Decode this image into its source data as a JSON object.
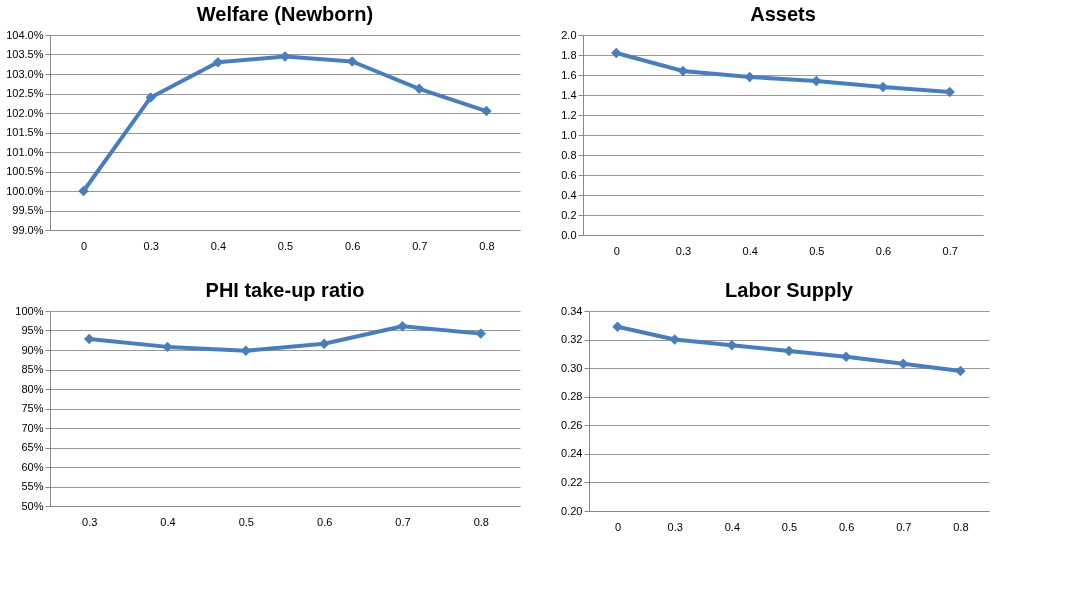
{
  "chart_data": [
    {
      "type": "line",
      "title": "Welfare (Newborn)",
      "categories": [
        "0",
        "0.3",
        "0.4",
        "0.5",
        "0.6",
        "0.7",
        "0.8"
      ],
      "series": [
        {
          "color": "#4a7ebb",
          "values": [
            100.0,
            102.4,
            103.3,
            103.45,
            103.32,
            102.62,
            102.05
          ]
        }
      ],
      "ylim": [
        99,
        104
      ],
      "yticks": [
        {
          "value": 99,
          "label": "99.0%"
        },
        {
          "value": 99.5,
          "label": "99.5%"
        },
        {
          "value": 100,
          "label": "100.0%"
        },
        {
          "value": 100.5,
          "label": "100.5%"
        },
        {
          "value": 101,
          "label": "101.0%"
        },
        {
          "value": 101.5,
          "label": "101.5%"
        },
        {
          "value": 102,
          "label": "102.0%"
        },
        {
          "value": 102.5,
          "label": "102.5%"
        },
        {
          "value": 103,
          "label": "103.0%"
        },
        {
          "value": 103.5,
          "label": "103.5%"
        },
        {
          "value": 104,
          "label": "104.0%"
        }
      ],
      "grid": "y",
      "marker": "diamond",
      "line_style": "solid"
    },
    {
      "type": "line",
      "title": "Assets",
      "categories": [
        "0",
        "0.3",
        "0.4",
        "0.5",
        "0.6",
        "0.7"
      ],
      "series": [
        {
          "color": "#4a7ebb",
          "values": [
            1.82,
            1.64,
            1.58,
            1.54,
            1.48,
            1.43
          ]
        }
      ],
      "ylim": [
        0,
        2
      ],
      "yticks": [
        {
          "value": 0,
          "label": "0.0"
        },
        {
          "value": 0.2,
          "label": "0.2"
        },
        {
          "value": 0.4,
          "label": "0.4"
        },
        {
          "value": 0.6,
          "label": "0.6"
        },
        {
          "value": 0.8,
          "label": "0.8"
        },
        {
          "value": 1,
          "label": "1.0"
        },
        {
          "value": 1.2,
          "label": "1.2"
        },
        {
          "value": 1.4,
          "label": "1.4"
        },
        {
          "value": 1.6,
          "label": "1.6"
        },
        {
          "value": 1.8,
          "label": "1.8"
        },
        {
          "value": 2,
          "label": "2.0"
        }
      ],
      "grid": "y",
      "marker": "diamond",
      "line_style": "solid"
    },
    {
      "type": "line",
      "title": "PHI take-up ratio",
      "categories": [
        "0.3",
        "0.4",
        "0.5",
        "0.6",
        "0.7",
        "0.8"
      ],
      "series": [
        {
          "color": "#4a7ebb",
          "values": [
            92.8,
            90.8,
            89.8,
            91.6,
            96.1,
            94.2
          ]
        }
      ],
      "ylim": [
        50,
        100
      ],
      "yticks": [
        {
          "value": 50,
          "label": "50%"
        },
        {
          "value": 55,
          "label": "55%"
        },
        {
          "value": 60,
          "label": "60%"
        },
        {
          "value": 65,
          "label": "65%"
        },
        {
          "value": 70,
          "label": "70%"
        },
        {
          "value": 75,
          "label": "75%"
        },
        {
          "value": 80,
          "label": "80%"
        },
        {
          "value": 85,
          "label": "85%"
        },
        {
          "value": 90,
          "label": "90%"
        },
        {
          "value": 95,
          "label": "95%"
        },
        {
          "value": 100,
          "label": "100%"
        }
      ],
      "grid": "y",
      "marker": "diamond",
      "line_style": "solid"
    },
    {
      "type": "line",
      "title": "Labor Supply",
      "categories": [
        "0",
        "0.3",
        "0.4",
        "0.5",
        "0.6",
        "0.7",
        "0.8"
      ],
      "series": [
        {
          "color": "#4a7ebb",
          "values": [
            0.329,
            0.32,
            0.316,
            0.312,
            0.308,
            0.303,
            0.298
          ]
        }
      ],
      "ylim": [
        0.2,
        0.34
      ],
      "yticks": [
        {
          "value": 0.2,
          "label": "0.20"
        },
        {
          "value": 0.22,
          "label": "0.22"
        },
        {
          "value": 0.24,
          "label": "0.24"
        },
        {
          "value": 0.26,
          "label": "0.26"
        },
        {
          "value": 0.28,
          "label": "0.28"
        },
        {
          "value": 0.3,
          "label": "0.30"
        },
        {
          "value": 0.32,
          "label": "0.32"
        },
        {
          "value": 0.34,
          "label": "0.34"
        }
      ],
      "grid": "y",
      "marker": "diamond",
      "line_style": "solid"
    }
  ]
}
